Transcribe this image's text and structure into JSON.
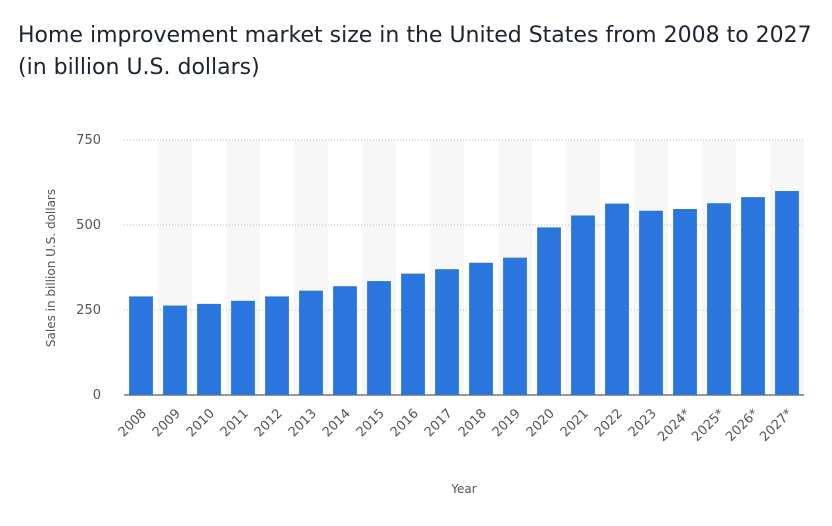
{
  "chart_data": {
    "type": "bar",
    "title": "Home improvement market size in the United States from 2008 to 2027 (in billion U.S. dollars)",
    "xlabel": "Year",
    "ylabel": "Sales in billion U.S. dollars",
    "ylim": [
      0,
      750
    ],
    "yticks": [
      "0",
      "250",
      "500",
      "750"
    ],
    "ytick_values": [
      0,
      250,
      500,
      750
    ],
    "grid": "horizontal dotted",
    "categories": [
      "2008",
      "2009",
      "2010",
      "2011",
      "2012",
      "2013",
      "2014",
      "2015",
      "2016",
      "2017",
      "2018",
      "2019",
      "2020",
      "2021",
      "2022",
      "2023",
      "2024*",
      "2025*",
      "2026*",
      "2027*"
    ],
    "values": [
      290,
      263,
      268,
      277,
      290,
      307,
      320,
      335,
      357,
      370,
      389,
      404,
      493,
      528,
      563,
      542,
      547,
      564,
      582,
      600
    ],
    "bar_color": "#2a76dd"
  }
}
